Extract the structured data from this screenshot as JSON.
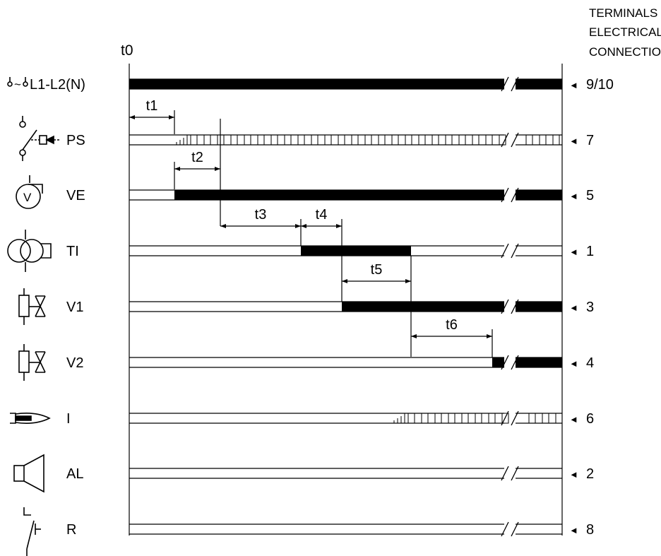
{
  "header": {
    "t0_label": "t0",
    "terminals_title_lines": [
      "TERMINALS FOR",
      "ELECTRICAL",
      "CONNECTIONS"
    ]
  },
  "signals": [
    {
      "id": "L1-L2(N)",
      "label": "L1-L2(N)",
      "terminal": "9/10",
      "icon": "power-supply-icon",
      "state": "on-from-start"
    },
    {
      "id": "PS",
      "label": "PS",
      "terminal": "7",
      "icon": "pressure-switch-icon",
      "state": "pulsing-after-t1"
    },
    {
      "id": "VE",
      "label": "VE",
      "terminal": "5",
      "icon": "fan-icon",
      "state": "on-after-t1"
    },
    {
      "id": "TI",
      "label": "TI",
      "terminal": "1",
      "icon": "ignition-transformer-icon",
      "state": "on-during-t4-t5"
    },
    {
      "id": "V1",
      "label": "V1",
      "terminal": "3",
      "icon": "valve-icon",
      "state": "on-after-t4"
    },
    {
      "id": "V2",
      "label": "V2",
      "terminal": "4",
      "icon": "valve-icon",
      "state": "on-after-t6"
    },
    {
      "id": "I",
      "label": "I",
      "terminal": "6",
      "icon": "flame-icon",
      "state": "pulsing-after-ignition"
    },
    {
      "id": "AL",
      "label": "AL",
      "terminal": "2",
      "icon": "alarm-icon",
      "state": "off"
    },
    {
      "id": "R",
      "label": "R",
      "terminal": "8",
      "icon": "thermostat-icon",
      "state": "off"
    }
  ],
  "intervals": [
    {
      "id": "t1",
      "label": "t1"
    },
    {
      "id": "t2",
      "label": "t2"
    },
    {
      "id": "t3",
      "label": "t3"
    },
    {
      "id": "t4",
      "label": "t4"
    },
    {
      "id": "t5",
      "label": "t5"
    },
    {
      "id": "t6",
      "label": "t6"
    }
  ],
  "terminal_marker": "◄"
}
